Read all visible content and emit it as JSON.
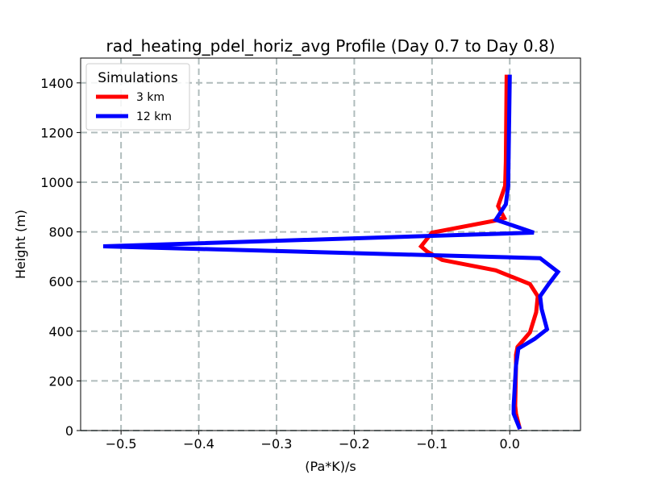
{
  "chart_data": {
    "type": "line",
    "title": "rad_heating_pdel_horiz_avg Profile (Day 0.7 to Day 0.8)",
    "xlabel": "(Pa*K)/s",
    "ylabel": "Height (m)",
    "xlim": [
      -0.552,
      0.091
    ],
    "ylim": [
      0,
      1500
    ],
    "xticks": [
      -0.5,
      -0.4,
      -0.3,
      -0.2,
      -0.1,
      0.0
    ],
    "xtick_labels": [
      "−0.5",
      "−0.4",
      "−0.3",
      "−0.2",
      "−0.1",
      "0.0"
    ],
    "yticks": [
      0,
      200,
      400,
      600,
      800,
      1000,
      1200,
      1400
    ],
    "ytick_labels": [
      "0",
      "200",
      "400",
      "600",
      "800",
      "1000",
      "1200",
      "1400"
    ],
    "grid": true,
    "legend": {
      "title": "Simulations",
      "placement": "top-left"
    },
    "series": [
      {
        "name": "3 km",
        "color": "#ff0000",
        "x": [
          0.013,
          0.008,
          0.007,
          0.008,
          0.008,
          0.01,
          0.026,
          0.034,
          0.036,
          0.026,
          -0.018,
          -0.087,
          -0.106,
          -0.114,
          -0.1,
          -0.018,
          -0.007,
          -0.015,
          -0.006,
          -0.005,
          -0.004
        ],
        "y": [
          6,
          68,
          100,
          262,
          305,
          337,
          395,
          476,
          541,
          590,
          645,
          687,
          720,
          742,
          797,
          846,
          856,
          904,
          985,
          1083,
          1433
        ]
      },
      {
        "name": "12 km",
        "color": "#0000ff",
        "x": [
          0.013,
          0.005,
          0.005,
          0.008,
          0.011,
          0.032,
          0.048,
          0.041,
          0.039,
          0.05,
          0.062,
          0.039,
          -0.523,
          0.031,
          -0.018,
          -0.005,
          -0.002,
          0.0
        ],
        "y": [
          6,
          68,
          100,
          262,
          330,
          369,
          408,
          489,
          541,
          590,
          639,
          694,
          742,
          797,
          849,
          911,
          985,
          1433
        ]
      }
    ]
  }
}
